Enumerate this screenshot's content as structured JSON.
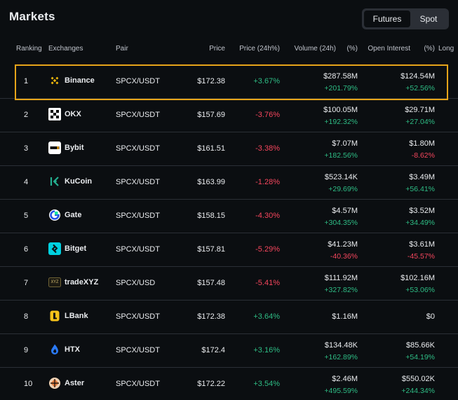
{
  "title": "Markets",
  "tabs": [
    {
      "label": "Futures",
      "active": true
    },
    {
      "label": "Spot",
      "active": false
    }
  ],
  "headers": {
    "ranking": "Ranking",
    "exchanges": "Exchanges",
    "pair": "Pair",
    "price": "Price",
    "price_change": "Price (24h%)",
    "volume": "Volume (24h)",
    "volume_pct": "(%)",
    "open_interest": "Open Interest",
    "oi_pct": "(%)",
    "long": "Long"
  },
  "colors": {
    "positive": "#2ebd85",
    "negative": "#f6465d",
    "highlight": "#e6a419"
  },
  "rows": [
    {
      "rank": "1",
      "exchange": "Binance",
      "icon": "binance-icon",
      "pair": "SPCX/USDT",
      "price": "$172.38",
      "change": "+3.67%",
      "volume": "$287.58M",
      "volume_change": "+201.79%",
      "open_interest": "$124.54M",
      "oi_change": "+52.56%"
    },
    {
      "rank": "2",
      "exchange": "OKX",
      "icon": "okx-icon",
      "pair": "SPCX/USDT",
      "price": "$157.69",
      "change": "-3.76%",
      "volume": "$100.05M",
      "volume_change": "+192.32%",
      "open_interest": "$29.71M",
      "oi_change": "+27.04%"
    },
    {
      "rank": "3",
      "exchange": "Bybit",
      "icon": "bybit-icon",
      "pair": "SPCX/USDT",
      "price": "$161.51",
      "change": "-3.38%",
      "volume": "$7.07M",
      "volume_change": "+182.56%",
      "open_interest": "$1.80M",
      "oi_change": "-8.62%"
    },
    {
      "rank": "4",
      "exchange": "KuCoin",
      "icon": "kucoin-icon",
      "pair": "SPCX/USDT",
      "price": "$163.99",
      "change": "-1.28%",
      "volume": "$523.14K",
      "volume_change": "+29.69%",
      "open_interest": "$3.49M",
      "oi_change": "+56.41%"
    },
    {
      "rank": "5",
      "exchange": "Gate",
      "icon": "gate-icon",
      "pair": "SPCX/USDT",
      "price": "$158.15",
      "change": "-4.30%",
      "volume": "$4.57M",
      "volume_change": "+304.35%",
      "open_interest": "$3.52M",
      "oi_change": "+34.49%"
    },
    {
      "rank": "6",
      "exchange": "Bitget",
      "icon": "bitget-icon",
      "pair": "SPCX/USDT",
      "price": "$157.81",
      "change": "-5.29%",
      "volume": "$41.23M",
      "volume_change": "-40.36%",
      "open_interest": "$3.61M",
      "oi_change": "-45.57%"
    },
    {
      "rank": "7",
      "exchange": "tradeXYZ",
      "icon": "tradexyz-icon",
      "icon_text": "XYZ",
      "pair": "SPCX/USD",
      "price": "$157.48",
      "change": "-5.41%",
      "volume": "$111.92M",
      "volume_change": "+327.82%",
      "open_interest": "$102.16M",
      "oi_change": "+53.06%"
    },
    {
      "rank": "8",
      "exchange": "LBank",
      "icon": "lbank-icon",
      "pair": "SPCX/USDT",
      "price": "$172.38",
      "change": "+3.64%",
      "volume": "$1.16M",
      "volume_change": "",
      "open_interest": "$0",
      "oi_change": ""
    },
    {
      "rank": "9",
      "exchange": "HTX",
      "icon": "htx-icon",
      "pair": "SPCX/USDT",
      "price": "$172.4",
      "change": "+3.16%",
      "volume": "$134.48K",
      "volume_change": "+162.89%",
      "open_interest": "$85.66K",
      "oi_change": "+54.19%"
    },
    {
      "rank": "10",
      "exchange": "Aster",
      "icon": "aster-icon",
      "pair": "SPCX/USDT",
      "price": "$172.22",
      "change": "+3.54%",
      "volume": "$2.46M",
      "volume_change": "+495.59%",
      "open_interest": "$550.02K",
      "oi_change": "+244.34%"
    }
  ]
}
